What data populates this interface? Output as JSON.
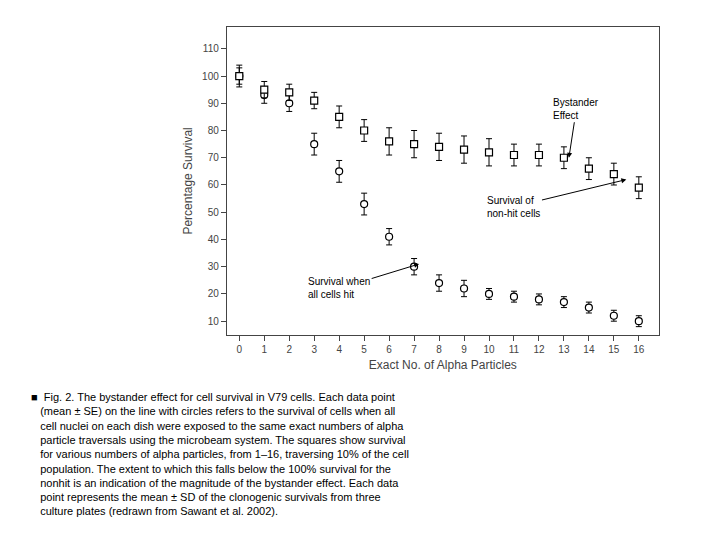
{
  "chart_data": {
    "type": "scatter",
    "xlabel": "Exact No. of Alpha Particles",
    "ylabel": "Percentage Survival",
    "xlim": [
      -0.5,
      16.8
    ],
    "ylim": [
      5,
      118
    ],
    "xticks": [
      0,
      1,
      2,
      3,
      4,
      5,
      6,
      7,
      8,
      9,
      10,
      11,
      12,
      13,
      14,
      15,
      16
    ],
    "yticks": [
      10,
      20,
      30,
      40,
      50,
      60,
      70,
      80,
      90,
      100,
      110
    ],
    "grid": false,
    "x": [
      0,
      1,
      2,
      3,
      4,
      5,
      6,
      7,
      8,
      9,
      10,
      11,
      12,
      13,
      14,
      15,
      16
    ],
    "series": [
      {
        "marker": "circle",
        "color": "#000000",
        "values": [
          100,
          93,
          90,
          75,
          65,
          53,
          41,
          30,
          24,
          22,
          20,
          19,
          18,
          17,
          15,
          12,
          10
        ],
        "yerr": [
          3,
          3,
          3,
          4,
          4,
          4,
          3,
          3,
          3,
          3,
          2,
          2,
          2,
          2,
          2,
          2,
          2
        ]
      },
      {
        "marker": "square",
        "color": "#000000",
        "values": [
          100,
          95,
          94,
          91,
          85,
          80,
          76,
          75,
          74,
          73,
          72,
          71,
          71,
          70,
          66,
          64,
          59
        ],
        "yerr": [
          4,
          3,
          3,
          3,
          4,
          4,
          5,
          5,
          5,
          5,
          5,
          4,
          4,
          4,
          4,
          4,
          4
        ]
      }
    ],
    "annotations": [
      {
        "text": "Bystander\nEffect",
        "x": 13.2,
        "y": 70,
        "text_x": 13.5,
        "text_y": 88
      },
      {
        "text": "Survival of\nnon-hit cells",
        "x": 15.5,
        "y": 62,
        "text_x": 11.0,
        "text_y": 52
      },
      {
        "text": "Survival when\nall cells hit",
        "x": 7.2,
        "y": 31,
        "text_x": 4.0,
        "text_y": 22
      }
    ],
    "caption": "■  Fig. 2. The bystander effect for cell survival in V79 cells. Each data point\n   (mean ± SE) on the line with circles refers to the survival of cells when all\n   cell nuclei on each dish were exposed to the same exact numbers of alpha\n   particle traversals using the microbeam system. The squares show survival\n   for various numbers of alpha particles, from 1–16, traversing 10% of the cell\n   population. The extent to which this falls below the 100% survival for the\n   nonhit is an indication of the magnitude of the bystander effect. Each data\n   point represents the mean ± SD of the clonogenic survivals from three\n   culture plates (redrawn from Sawant et al. 2002)."
  }
}
